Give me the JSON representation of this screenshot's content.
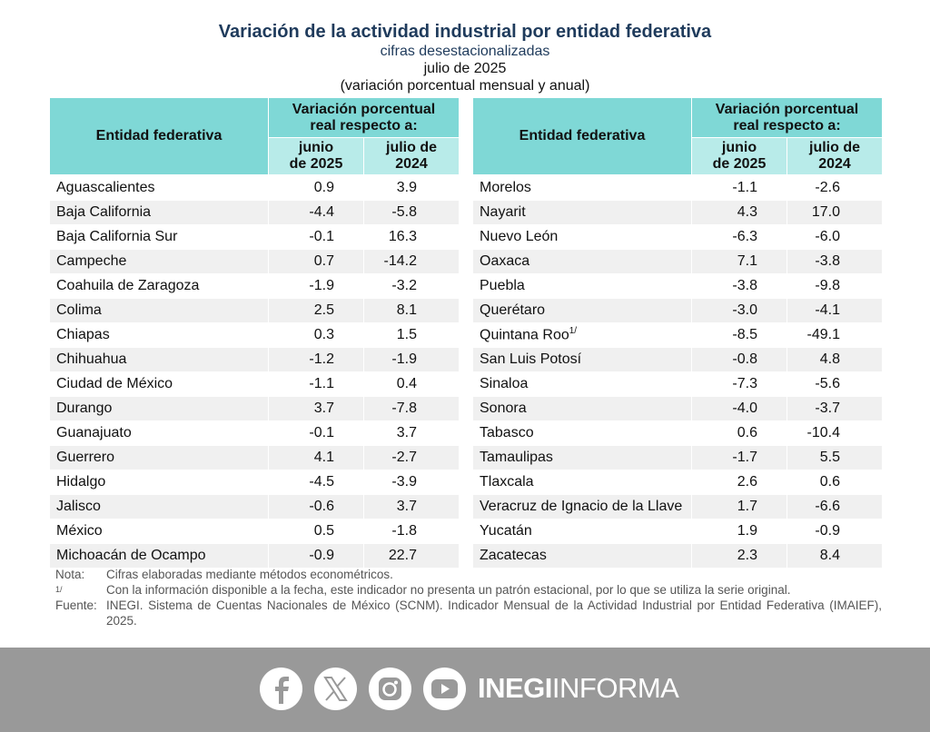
{
  "header": {
    "title": "Variación de la actividad industrial por entidad federativa",
    "subtitle": "cifras desestacionalizadas",
    "period": "julio de 2025",
    "unit": "(variación porcentual mensual y anual)"
  },
  "table_headers": {
    "entity": "Entidad federativa",
    "variation": "Variación porcentual real respecto a:",
    "col_month": "junio de 2025",
    "col_year": "julio de 2024"
  },
  "left_rows": [
    {
      "name": "Aguascalientes",
      "m": "0.9",
      "y": "3.9"
    },
    {
      "name": "Baja California",
      "m": "-4.4",
      "y": "-5.8"
    },
    {
      "name": "Baja California Sur",
      "m": "-0.1",
      "y": "16.3"
    },
    {
      "name": "Campeche",
      "m": "0.7",
      "y": "-14.2"
    },
    {
      "name": "Coahuila de Zaragoza",
      "m": "-1.9",
      "y": "-3.2"
    },
    {
      "name": "Colima",
      "m": "2.5",
      "y": "8.1"
    },
    {
      "name": "Chiapas",
      "m": "0.3",
      "y": "1.5"
    },
    {
      "name": "Chihuahua",
      "m": "-1.2",
      "y": "-1.9"
    },
    {
      "name": "Ciudad de México",
      "m": "-1.1",
      "y": "0.4"
    },
    {
      "name": "Durango",
      "m": "3.7",
      "y": "-7.8"
    },
    {
      "name": "Guanajuato",
      "m": "-0.1",
      "y": "3.7"
    },
    {
      "name": "Guerrero",
      "m": "4.1",
      "y": "-2.7"
    },
    {
      "name": "Hidalgo",
      "m": "-4.5",
      "y": "-3.9"
    },
    {
      "name": "Jalisco",
      "m": "-0.6",
      "y": "3.7"
    },
    {
      "name": "México",
      "m": "0.5",
      "y": "-1.8"
    },
    {
      "name": "Michoacán de Ocampo",
      "m": "-0.9",
      "y": "22.7"
    }
  ],
  "right_rows": [
    {
      "name": "Morelos",
      "m": "-1.1",
      "y": "-2.6"
    },
    {
      "name": "Nayarit",
      "m": "4.3",
      "y": "17.0"
    },
    {
      "name": "Nuevo León",
      "m": "-6.3",
      "y": "-6.0"
    },
    {
      "name": "Oaxaca",
      "m": "7.1",
      "y": "-3.8"
    },
    {
      "name": "Puebla",
      "m": "-3.8",
      "y": "-9.8"
    },
    {
      "name": "Querétaro",
      "m": "-3.0",
      "y": "-4.1"
    },
    {
      "name": "Quintana Roo",
      "sup": "1/",
      "m": "-8.5",
      "y": "-49.1"
    },
    {
      "name": "San Luis Potosí",
      "m": "-0.8",
      "y": "4.8"
    },
    {
      "name": "Sinaloa",
      "m": "-7.3",
      "y": "-5.6"
    },
    {
      "name": "Sonora",
      "m": "-4.0",
      "y": "-3.7"
    },
    {
      "name": "Tabasco",
      "m": "0.6",
      "y": "-10.4"
    },
    {
      "name": "Tamaulipas",
      "m": "-1.7",
      "y": "5.5"
    },
    {
      "name": "Tlaxcala",
      "m": "2.6",
      "y": "0.6"
    },
    {
      "name": "Veracruz de Ignacio de la Llave",
      "m": "1.7",
      "y": "-6.6"
    },
    {
      "name": "Yucatán",
      "m": "1.9",
      "y": "-0.9"
    },
    {
      "name": "Zacatecas",
      "m": "2.3",
      "y": "8.4"
    }
  ],
  "notes": {
    "nota_label": "Nota:",
    "nota_text": "Cifras elaboradas mediante métodos econométricos.",
    "fn_label": "1/",
    "fn_text": "Con la información disponible a la fecha, este indicador no presenta un patrón estacional, por lo que se utiliza la serie original.",
    "fuente_label": "Fuente:",
    "fuente_text": "INEGI. Sistema de Cuentas Nacionales de México (SCNM). Indicador Mensual de la Actividad Industrial por Entidad Federativa (IMAIEF), 2025."
  },
  "footer": {
    "icons": [
      "facebook-icon",
      "x-icon",
      "instagram-icon",
      "youtube-icon"
    ],
    "brand_bold": "INEGI",
    "brand_light": "INFORMA",
    "background": "#999999"
  },
  "colors": {
    "header_dark": "#7fd8d6",
    "header_light": "#b8ebe9",
    "title": "#1f3b5c",
    "alt_row": "#f0f0f0"
  }
}
